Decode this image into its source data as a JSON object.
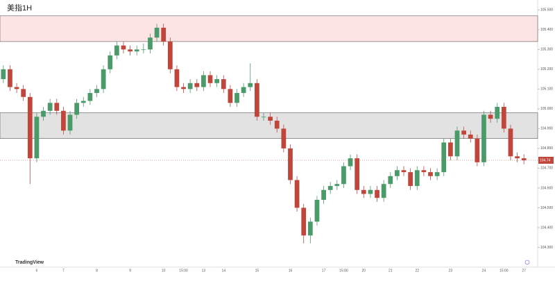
{
  "chart_data": {
    "type": "candlestick",
    "title": "美指1H",
    "watermark": "TradingView",
    "up_color": "#4a9a6a",
    "down_color": "#c0463c",
    "ylim": [
      104.2,
      105.55
    ],
    "yticks": [
      {
        "value": 104.3,
        "label": "104.300"
      },
      {
        "value": 104.4,
        "label": "104.400"
      },
      {
        "value": 104.5,
        "label": "104.500"
      },
      {
        "value": 104.6,
        "label": "104.600"
      },
      {
        "value": 104.7,
        "label": "104.700"
      },
      {
        "value": 104.8,
        "label": "104.800"
      },
      {
        "value": 104.9,
        "label": "104.900"
      },
      {
        "value": 105.0,
        "label": "105.000"
      },
      {
        "value": 105.1,
        "label": "105.100"
      },
      {
        "value": 105.2,
        "label": "105.200"
      },
      {
        "value": 105.3,
        "label": "105.300"
      },
      {
        "value": 105.4,
        "label": "105.400"
      },
      {
        "value": 105.5,
        "label": "105.500"
      }
    ],
    "x_labels": [
      {
        "index": 5,
        "label": "6"
      },
      {
        "index": 9,
        "label": "7"
      },
      {
        "index": 14,
        "label": "8"
      },
      {
        "index": 19,
        "label": "9"
      },
      {
        "index": 24,
        "label": "10"
      },
      {
        "index": 27,
        "label": "15:00"
      },
      {
        "index": 30,
        "label": "13"
      },
      {
        "index": 33,
        "label": "14"
      },
      {
        "index": 38,
        "label": "15"
      },
      {
        "index": 43,
        "label": "16"
      },
      {
        "index": 48,
        "label": "17"
      },
      {
        "index": 51,
        "label": "15:00"
      },
      {
        "index": 54,
        "label": "20"
      },
      {
        "index": 58,
        "label": "21"
      },
      {
        "index": 62,
        "label": "22"
      },
      {
        "index": 67,
        "label": "23"
      },
      {
        "index": 72,
        "label": "24"
      },
      {
        "index": 75,
        "label": "15:00"
      },
      {
        "index": 78,
        "label": "27"
      }
    ],
    "zones": [
      {
        "top": 105.47,
        "bottom": 105.34,
        "color": "#fde4e4"
      },
      {
        "top": 104.98,
        "bottom": 104.85,
        "color": "#e2e2e2"
      }
    ],
    "candles": [
      [
        105.15,
        105.22,
        105.13,
        105.2
      ],
      [
        105.2,
        105.22,
        105.09,
        105.11
      ],
      [
        105.11,
        105.13,
        105.08,
        105.1
      ],
      [
        105.1,
        105.12,
        105.04,
        105.06
      ],
      [
        105.06,
        105.08,
        104.62,
        104.75
      ],
      [
        104.75,
        104.98,
        104.73,
        104.96
      ],
      [
        104.96,
        105.01,
        104.94,
        104.99
      ],
      [
        104.99,
        105.05,
        104.97,
        105.03
      ],
      [
        105.03,
        105.05,
        104.97,
        104.99
      ],
      [
        104.99,
        105.01,
        104.87,
        104.89
      ],
      [
        104.89,
        104.99,
        104.87,
        104.97
      ],
      [
        104.97,
        105.05,
        104.95,
        105.03
      ],
      [
        105.03,
        105.06,
        105.01,
        105.04
      ],
      [
        105.04,
        105.1,
        105.02,
        105.08
      ],
      [
        105.08,
        105.12,
        105.06,
        105.1
      ],
      [
        105.1,
        105.22,
        105.08,
        105.2
      ],
      [
        105.2,
        105.29,
        105.18,
        105.27
      ],
      [
        105.27,
        105.34,
        105.25,
        105.32
      ],
      [
        105.32,
        105.34,
        105.28,
        105.3
      ],
      [
        105.3,
        105.32,
        105.27,
        105.29
      ],
      [
        105.29,
        105.32,
        105.27,
        105.3
      ],
      [
        105.3,
        105.33,
        105.28,
        105.3
      ],
      [
        105.3,
        105.38,
        105.28,
        105.36
      ],
      [
        105.36,
        105.43,
        105.34,
        105.41
      ],
      [
        105.41,
        105.43,
        105.32,
        105.34
      ],
      [
        105.34,
        105.36,
        105.18,
        105.2
      ],
      [
        105.2,
        105.22,
        105.09,
        105.11
      ],
      [
        105.11,
        105.13,
        105.08,
        105.1
      ],
      [
        105.1,
        105.15,
        105.08,
        105.13
      ],
      [
        105.13,
        105.15,
        105.09,
        105.11
      ],
      [
        105.11,
        105.19,
        105.09,
        105.17
      ],
      [
        105.17,
        105.19,
        105.11,
        105.13
      ],
      [
        105.13,
        105.17,
        105.11,
        105.15
      ],
      [
        105.15,
        105.17,
        105.08,
        105.1
      ],
      [
        105.1,
        105.12,
        105.01,
        105.03
      ],
      [
        105.03,
        105.1,
        105.01,
        105.08
      ],
      [
        105.08,
        105.13,
        105.06,
        105.11
      ],
      [
        105.11,
        105.23,
        105.09,
        105.13
      ],
      [
        105.13,
        105.15,
        104.94,
        104.96
      ],
      [
        104.96,
        104.98,
        104.94,
        104.96
      ],
      [
        104.96,
        104.98,
        104.92,
        104.94
      ],
      [
        104.94,
        104.96,
        104.88,
        104.9
      ],
      [
        104.9,
        104.92,
        104.78,
        104.8
      ],
      [
        104.8,
        104.82,
        104.62,
        104.64
      ],
      [
        104.64,
        104.66,
        104.48,
        104.5
      ],
      [
        104.5,
        104.52,
        104.32,
        104.36
      ],
      [
        104.36,
        104.45,
        104.32,
        104.43
      ],
      [
        104.43,
        104.56,
        104.41,
        104.54
      ],
      [
        104.54,
        104.61,
        104.52,
        104.59
      ],
      [
        104.59,
        104.63,
        104.57,
        104.61
      ],
      [
        104.61,
        104.64,
        104.59,
        104.62
      ],
      [
        104.62,
        104.73,
        104.6,
        104.71
      ],
      [
        104.71,
        104.77,
        104.69,
        104.75
      ],
      [
        104.75,
        104.77,
        104.57,
        104.59
      ],
      [
        104.59,
        104.61,
        104.55,
        104.57
      ],
      [
        104.57,
        104.61,
        104.55,
        104.59
      ],
      [
        104.59,
        104.61,
        104.53,
        104.55
      ],
      [
        104.55,
        104.64,
        104.53,
        104.62
      ],
      [
        104.62,
        104.68,
        104.6,
        104.66
      ],
      [
        104.66,
        104.71,
        104.64,
        104.69
      ],
      [
        104.69,
        104.71,
        104.66,
        104.68
      ],
      [
        104.68,
        104.7,
        104.59,
        104.61
      ],
      [
        104.61,
        104.71,
        104.59,
        104.69
      ],
      [
        104.69,
        104.71,
        104.66,
        104.68
      ],
      [
        104.68,
        104.7,
        104.64,
        104.66
      ],
      [
        104.66,
        104.7,
        104.64,
        104.68
      ],
      [
        104.68,
        104.85,
        104.66,
        104.83
      ],
      [
        104.83,
        104.85,
        104.74,
        104.76
      ],
      [
        104.76,
        104.91,
        104.74,
        104.89
      ],
      [
        104.89,
        104.91,
        104.85,
        104.87
      ],
      [
        104.87,
        104.89,
        104.83,
        104.85
      ],
      [
        104.85,
        104.87,
        104.71,
        104.73
      ],
      [
        104.73,
        104.99,
        104.71,
        104.97
      ],
      [
        104.97,
        104.99,
        104.93,
        104.95
      ],
      [
        104.95,
        105.03,
        104.93,
        105.01
      ],
      [
        105.01,
        105.03,
        104.88,
        104.9
      ],
      [
        104.9,
        104.92,
        104.74,
        104.76
      ],
      [
        104.76,
        104.78,
        104.73,
        104.75
      ],
      [
        104.75,
        104.77,
        104.72,
        104.74
      ]
    ]
  }
}
